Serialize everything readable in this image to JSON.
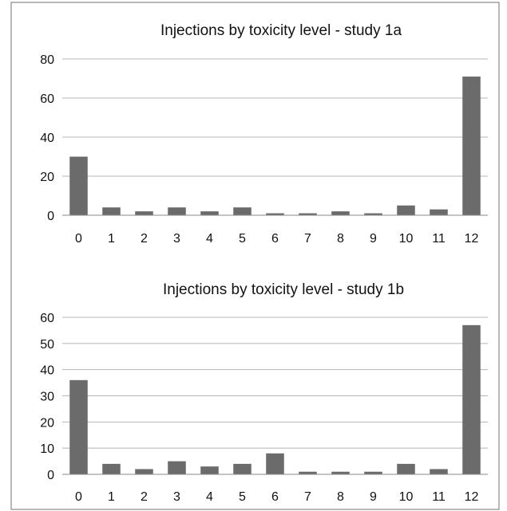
{
  "colors": {
    "bar": "#6b6b6b",
    "grid": "#b5b5b5",
    "frame": "#8a8a8a",
    "text": "#111111"
  },
  "chart_data": [
    {
      "type": "bar",
      "title": "Injections by toxicity level - study 1a",
      "categories": [
        "0",
        "1",
        "2",
        "3",
        "4",
        "5",
        "6",
        "7",
        "8",
        "9",
        "10",
        "11",
        "12"
      ],
      "values": [
        30,
        4,
        2,
        4,
        2,
        4,
        1,
        1,
        2,
        1,
        5,
        3,
        71
      ],
      "xlabel": "",
      "ylabel": "",
      "ylim": [
        0,
        80
      ],
      "yticks": [
        "0",
        "20",
        "40",
        "60",
        "80"
      ],
      "grid": true,
      "legend": "none"
    },
    {
      "type": "bar",
      "title": "Injections by toxicity level - study 1b",
      "categories": [
        "0",
        "1",
        "2",
        "3",
        "4",
        "5",
        "6",
        "7",
        "8",
        "9",
        "10",
        "11",
        "12"
      ],
      "values": [
        36,
        4,
        2,
        5,
        3,
        4,
        8,
        1,
        1,
        1,
        4,
        2,
        57
      ],
      "xlabel": "",
      "ylabel": "",
      "ylim": [
        0,
        60
      ],
      "yticks": [
        "0",
        "10",
        "20",
        "30",
        "40",
        "50",
        "60"
      ],
      "grid": true,
      "legend": "none"
    }
  ]
}
